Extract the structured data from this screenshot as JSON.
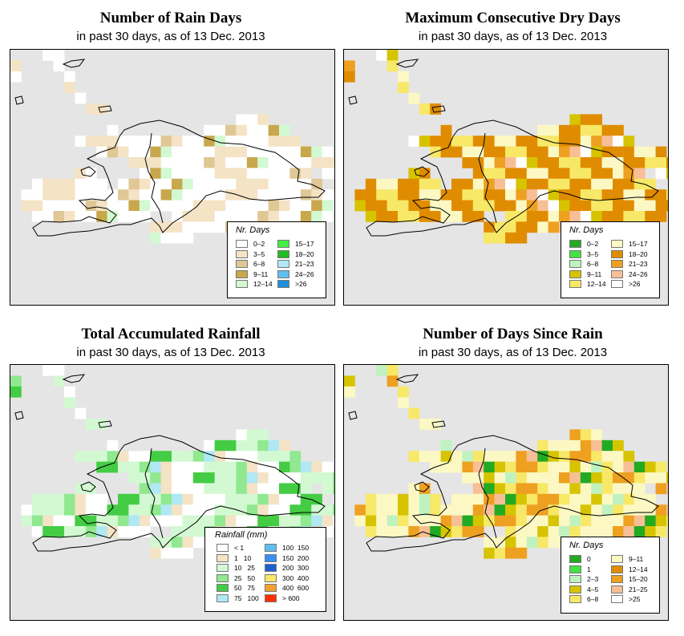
{
  "panels": [
    {
      "title": "Number of Rain Days",
      "subtitle": "in past 30 days, as of  13 Dec. 2013",
      "legend": {
        "title": "Nr. Days",
        "items": [
          {
            "label": "0–2",
            "color": "#ffffff"
          },
          {
            "label": "3–5",
            "color": "#f4e3c5"
          },
          {
            "label": "6–8",
            "color": "#e0c796"
          },
          {
            "label": "9–11",
            "color": "#c9a74c"
          },
          {
            "label": "12–14",
            "color": "#d3f9d3"
          },
          {
            "label": "15–17",
            "color": "#44ee44"
          },
          {
            "label": "18–20",
            "color": "#22bb22"
          },
          {
            "label": "21–23",
            "color": "#b0e8f4"
          },
          {
            "label": "24–26",
            "color": "#5fbef0"
          },
          {
            "label": ">26",
            "color": "#1e90dc"
          }
        ]
      }
    },
    {
      "title": "Maximum Consecutive Dry Days",
      "subtitle": "in past 30 days, as of  13 Dec. 2013",
      "legend": {
        "title": "Nr. Days",
        "items": [
          {
            "label": "0–2",
            "color": "#22aa22"
          },
          {
            "label": "3–5",
            "color": "#44e044"
          },
          {
            "label": "6–8",
            "color": "#c0f2c0"
          },
          {
            "label": "9–11",
            "color": "#d6c400"
          },
          {
            "label": "12–14",
            "color": "#f8e868"
          },
          {
            "label": "15–17",
            "color": "#fcf8c4"
          },
          {
            "label": "18–20",
            "color": "#e08c00"
          },
          {
            "label": "21–23",
            "color": "#eea020"
          },
          {
            "label": "24–26",
            "color": "#f8bf96"
          },
          {
            "label": ">26",
            "color": "#ffffff"
          }
        ]
      }
    },
    {
      "title": "Total Accumulated Rainfall",
      "subtitle": "in past 30 days, as of  13 Dec. 2013",
      "legend": {
        "title": "Rainfall (mm)",
        "items": [
          {
            "label": "< 1",
            "color": "#ffffff"
          },
          {
            "label": "1   10",
            "color": "#f4e3c5"
          },
          {
            "label": "10   25",
            "color": "#d3f9d3"
          },
          {
            "label": "25   50",
            "color": "#90e890"
          },
          {
            "label": "50   75",
            "color": "#44cc44"
          },
          {
            "label": "75   100",
            "color": "#b0e8f4"
          },
          {
            "label": "100  150",
            "color": "#5fbef0"
          },
          {
            "label": "150  200",
            "color": "#3a8ff0"
          },
          {
            "label": "200  300",
            "color": "#1e5fd0"
          },
          {
            "label": "300  400",
            "color": "#f8e868"
          },
          {
            "label": "400  600",
            "color": "#f4a030"
          },
          {
            "label": "> 600",
            "color": "#ff3000"
          }
        ]
      }
    },
    {
      "title": "Number of Days Since Rain",
      "subtitle": "in past 30 days, as of  13 Dec. 2013",
      "legend": {
        "title": "Nr. Days",
        "items": [
          {
            "label": "0",
            "color": "#22aa22"
          },
          {
            "label": "1",
            "color": "#44e044"
          },
          {
            "label": "2–3",
            "color": "#c0f2c0"
          },
          {
            "label": "4–5",
            "color": "#d6c400"
          },
          {
            "label": "6–8",
            "color": "#f8e868"
          },
          {
            "label": "9–11",
            "color": "#fcf8c4"
          },
          {
            "label": "12–14",
            "color": "#e08c00"
          },
          {
            "label": "15–20",
            "color": "#eea020"
          },
          {
            "label": "21–25",
            "color": "#f8bf96"
          },
          {
            "label": ">25",
            "color": "#ffffff"
          }
        ]
      }
    }
  ]
}
